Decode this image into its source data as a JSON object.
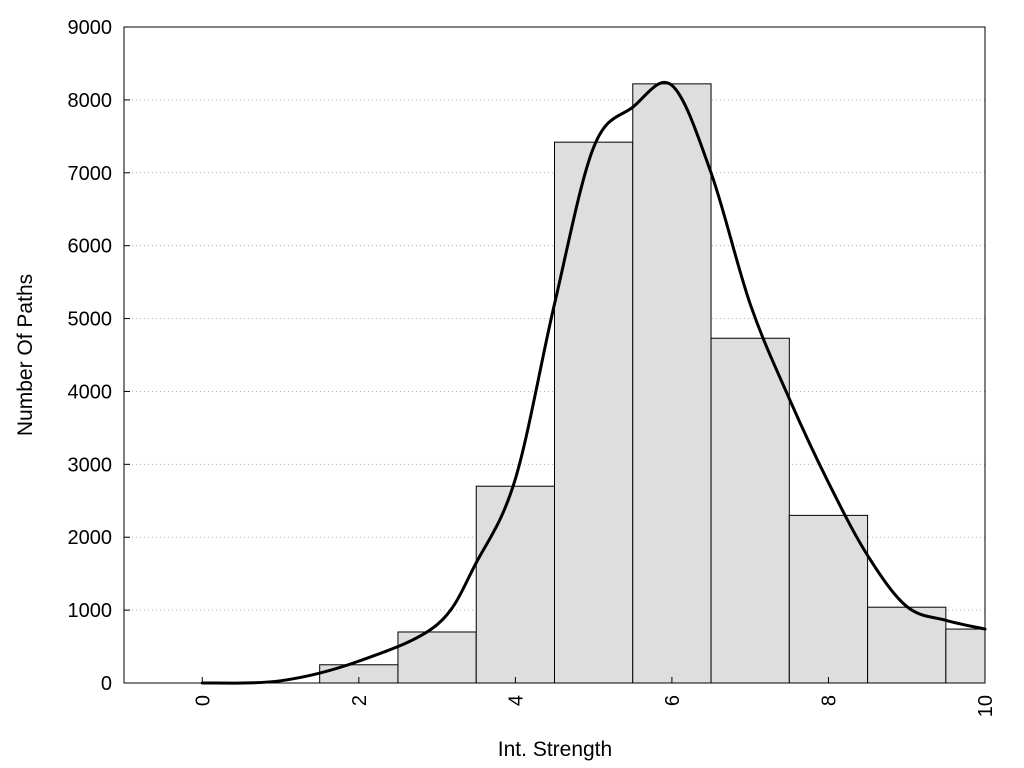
{
  "chart_data": {
    "type": "bar",
    "title": "",
    "xlabel": "Int. Strength",
    "ylabel": "Number Of Paths",
    "xlim": [
      -1,
      10
    ],
    "ylim": [
      0,
      9000
    ],
    "x_ticks": [
      0,
      2,
      4,
      6,
      8,
      10
    ],
    "x_tick_labels": [
      "0",
      "2",
      "4",
      "6",
      "8",
      "10"
    ],
    "y_ticks": [
      0,
      1000,
      2000,
      3000,
      4000,
      5000,
      6000,
      7000,
      8000,
      9000
    ],
    "y_tick_labels": [
      "0",
      "1000",
      "2000",
      "3000",
      "4000",
      "5000",
      "6000",
      "7000",
      "8000",
      "9000"
    ],
    "grid": "horizontal dotted",
    "bars": {
      "x": [
        0,
        1,
        2,
        3,
        4,
        5,
        6,
        7,
        8,
        9,
        10
      ],
      "values": [
        0,
        0,
        250,
        700,
        2700,
        7420,
        8220,
        4730,
        2300,
        1040,
        740
      ],
      "bin_width": 1,
      "fill": "#dedede",
      "stroke": "#000000"
    },
    "curve": {
      "x": [
        0,
        1,
        2,
        3,
        3.5,
        4,
        4.5,
        5,
        5.5,
        6,
        6.5,
        7,
        7.5,
        8,
        8.5,
        9,
        9.5,
        10
      ],
      "y": [
        0,
        30,
        300,
        800,
        1650,
        2800,
        5200,
        7350,
        7900,
        8200,
        7000,
        5200,
        3900,
        2750,
        1750,
        1050,
        860,
        740
      ],
      "color": "#000000"
    }
  }
}
